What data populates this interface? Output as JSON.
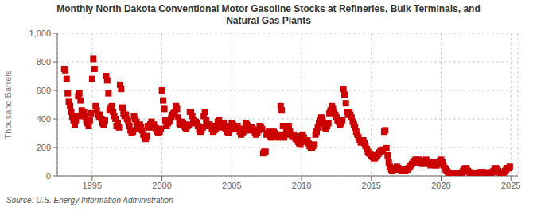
{
  "chart_data": {
    "type": "scatter",
    "title": "Monthly North Dakota Conventional Motor Gasoline Stocks at Refineries, Bulk Terminals, and\nNatural Gas Plants",
    "ylabel": "Thousand Barrels",
    "annotations": [
      "Source: U.S. Energy Information Administration"
    ],
    "color": "#CC0000",
    "marker": "square",
    "grid": true,
    "xlim": [
      1992.5,
      2025.5
    ],
    "xticks": [
      1995,
      2000,
      2005,
      2010,
      2015,
      2020,
      2025
    ],
    "ylim": [
      0,
      1000
    ],
    "yticks": [
      0,
      200,
      400,
      600,
      800,
      {
        "value": 1000,
        "label": "1,000"
      }
    ],
    "x": [
      1993.0,
      1993.08,
      1993.17,
      1993.25,
      1993.33,
      1993.42,
      1993.5,
      1993.58,
      1993.67,
      1993.75,
      1993.83,
      1993.92,
      1994.0,
      1994.08,
      1994.17,
      1994.25,
      1994.33,
      1994.42,
      1994.5,
      1994.58,
      1994.67,
      1994.75,
      1994.83,
      1994.92,
      1995.0,
      1995.08,
      1995.17,
      1995.25,
      1995.33,
      1995.42,
      1995.5,
      1995.58,
      1995.67,
      1995.75,
      1995.83,
      1995.92,
      1996.0,
      1996.08,
      1996.17,
      1996.25,
      1996.33,
      1996.42,
      1996.5,
      1996.58,
      1996.67,
      1996.75,
      1996.83,
      1996.92,
      1997.0,
      1997.08,
      1997.17,
      1997.25,
      1997.33,
      1997.42,
      1997.5,
      1997.58,
      1997.67,
      1997.75,
      1997.83,
      1997.92,
      1998.0,
      1998.08,
      1998.17,
      1998.25,
      1998.33,
      1998.42,
      1998.5,
      1998.58,
      1998.67,
      1998.75,
      1998.83,
      1998.92,
      1999.0,
      1999.08,
      1999.17,
      1999.25,
      1999.33,
      1999.42,
      1999.5,
      1999.58,
      1999.67,
      1999.75,
      1999.83,
      1999.92,
      2000.0,
      2000.08,
      2000.17,
      2000.25,
      2000.33,
      2000.42,
      2000.5,
      2000.58,
      2000.67,
      2000.75,
      2000.83,
      2000.92,
      2001.0,
      2001.08,
      2001.17,
      2001.25,
      2001.33,
      2001.42,
      2001.5,
      2001.58,
      2001.67,
      2001.75,
      2001.83,
      2001.92,
      2002.0,
      2002.08,
      2002.17,
      2002.25,
      2002.33,
      2002.42,
      2002.5,
      2002.58,
      2002.67,
      2002.75,
      2002.83,
      2002.92,
      2003.0,
      2003.08,
      2003.17,
      2003.25,
      2003.33,
      2003.42,
      2003.5,
      2003.58,
      2003.67,
      2003.75,
      2003.83,
      2003.92,
      2004.0,
      2004.08,
      2004.17,
      2004.25,
      2004.33,
      2004.42,
      2004.5,
      2004.58,
      2004.67,
      2004.75,
      2004.83,
      2004.92,
      2005.0,
      2005.08,
      2005.17,
      2005.25,
      2005.33,
      2005.42,
      2005.5,
      2005.58,
      2005.67,
      2005.75,
      2005.83,
      2005.92,
      2006.0,
      2006.08,
      2006.17,
      2006.25,
      2006.33,
      2006.42,
      2006.5,
      2006.58,
      2006.67,
      2006.75,
      2006.83,
      2006.92,
      2007.0,
      2007.08,
      2007.17,
      2007.25,
      2007.33,
      2007.42,
      2007.5,
      2007.58,
      2007.67,
      2007.75,
      2007.83,
      2007.92,
      2008.0,
      2008.08,
      2008.17,
      2008.25,
      2008.33,
      2008.42,
      2008.5,
      2008.58,
      2008.67,
      2008.75,
      2008.83,
      2008.92,
      2009.0,
      2009.08,
      2009.17,
      2009.25,
      2009.33,
      2009.42,
      2009.5,
      2009.58,
      2009.67,
      2009.75,
      2009.83,
      2009.92,
      2010.0,
      2010.08,
      2010.17,
      2010.25,
      2010.33,
      2010.42,
      2010.5,
      2010.58,
      2010.67,
      2010.75,
      2010.83,
      2010.92,
      2011.0,
      2011.08,
      2011.17,
      2011.25,
      2011.33,
      2011.42,
      2011.5,
      2011.58,
      2011.67,
      2011.75,
      2011.83,
      2011.92,
      2012.0,
      2012.08,
      2012.17,
      2012.25,
      2012.33,
      2012.42,
      2012.5,
      2012.58,
      2012.67,
      2012.75,
      2012.83,
      2012.92,
      2013.0,
      2013.08,
      2013.17,
      2013.25,
      2013.33,
      2013.42,
      2013.5,
      2013.58,
      2013.67,
      2013.75,
      2013.83,
      2013.92,
      2014.0,
      2014.08,
      2014.17,
      2014.25,
      2014.33,
      2014.42,
      2014.5,
      2014.58,
      2014.67,
      2014.75,
      2014.83,
      2014.92,
      2015.0,
      2015.08,
      2015.17,
      2015.25,
      2015.33,
      2015.42,
      2015.5,
      2015.58,
      2015.67,
      2015.75,
      2015.83,
      2015.92,
      2016.0,
      2016.08,
      2016.17,
      2016.25,
      2016.33,
      2016.42,
      2016.5,
      2016.58,
      2016.67,
      2016.75,
      2016.83,
      2016.92,
      2017.0,
      2017.08,
      2017.17,
      2017.25,
      2017.33,
      2017.42,
      2017.5,
      2017.58,
      2017.67,
      2017.75,
      2017.83,
      2017.92,
      2018.0,
      2018.08,
      2018.17,
      2018.25,
      2018.33,
      2018.42,
      2018.5,
      2018.58,
      2018.67,
      2018.75,
      2018.83,
      2018.92,
      2019.0,
      2019.08,
      2019.17,
      2019.25,
      2019.33,
      2019.42,
      2019.5,
      2019.58,
      2019.67,
      2019.75,
      2019.83,
      2019.92,
      2020.0,
      2020.08,
      2020.17,
      2020.25,
      2020.33,
      2020.42,
      2020.5,
      2020.58,
      2020.67,
      2020.75,
      2020.83,
      2020.92,
      2021.0,
      2021.08,
      2021.17,
      2021.25,
      2021.33,
      2021.42,
      2021.5,
      2021.58,
      2021.67,
      2021.75,
      2021.83,
      2021.92,
      2022.0,
      2022.08,
      2022.17,
      2022.25,
      2022.33,
      2022.42,
      2022.5,
      2022.58,
      2022.67,
      2022.75,
      2022.83,
      2022.92,
      2023.0,
      2023.08,
      2023.17,
      2023.25,
      2023.33,
      2023.42,
      2023.5,
      2023.58,
      2023.67,
      2023.75,
      2023.83,
      2023.92,
      2024.0,
      2024.08,
      2024.17,
      2024.25,
      2024.33,
      2024.42,
      2024.5,
      2024.58,
      2024.67,
      2024.75,
      2024.83,
      2024.92
    ],
    "values": [
      750,
      740,
      680,
      580,
      520,
      490,
      450,
      410,
      390,
      360,
      390,
      420,
      560,
      580,
      530,
      460,
      420,
      450,
      420,
      390,
      370,
      350,
      390,
      440,
      680,
      820,
      750,
      490,
      460,
      430,
      410,
      430,
      400,
      370,
      360,
      390,
      700,
      670,
      580,
      460,
      480,
      490,
      450,
      420,
      400,
      350,
      370,
      340,
      640,
      610,
      480,
      440,
      420,
      430,
      400,
      380,
      350,
      320,
      300,
      310,
      420,
      400,
      380,
      350,
      330,
      360,
      340,
      320,
      290,
      270,
      260,
      280,
      350,
      340,
      360,
      380,
      350,
      360,
      340,
      330,
      310,
      300,
      310,
      330,
      600,
      530,
      470,
      390,
      350,
      370,
      380,
      390,
      410,
      430,
      440,
      450,
      490,
      470,
      410,
      370,
      360,
      380,
      370,
      350,
      340,
      330,
      350,
      360,
      450,
      450,
      420,
      390,
      370,
      380,
      370,
      350,
      330,
      310,
      320,
      340,
      420,
      450,
      390,
      360,
      350,
      360,
      350,
      330,
      310,
      320,
      330,
      350,
      380,
      390,
      370,
      340,
      350,
      370,
      350,
      330,
      310,
      300,
      320,
      340,
      370,
      360,
      350,
      330,
      340,
      350,
      330,
      310,
      290,
      300,
      310,
      330,
      370,
      360,
      350,
      330,
      320,
      340,
      330,
      320,
      300,
      290,
      300,
      320,
      350,
      340,
      330,
      160,
      170,
      170,
      290,
      300,
      310,
      280,
      270,
      290,
      310,
      300,
      290,
      280,
      270,
      290,
      490,
      460,
      350,
      270,
      290,
      310,
      330,
      350,
      310,
      290,
      280,
      290,
      280,
      260,
      250,
      240,
      230,
      220,
      280,
      290,
      270,
      250,
      240,
      250,
      230,
      210,
      195,
      200,
      210,
      220,
      290,
      310,
      340,
      370,
      390,
      410,
      390,
      370,
      340,
      330,
      350,
      370,
      440,
      460,
      490,
      470,
      450,
      430,
      410,
      390,
      380,
      360,
      370,
      390,
      610,
      570,
      510,
      450,
      430,
      450,
      430,
      410,
      380,
      360,
      340,
      310,
      290,
      270,
      250,
      235,
      240,
      250,
      230,
      210,
      190,
      170,
      160,
      155,
      145,
      135,
      125,
      125,
      135,
      145,
      155,
      165,
      175,
      175,
      185,
      310,
      320,
      195,
      145,
      95,
      65,
      45,
      35,
      45,
      55,
      55,
      65,
      55,
      45,
      45,
      35,
      35,
      35,
      35,
      45,
      45,
      55,
      65,
      75,
      85,
      95,
      105,
      115,
      95,
      105,
      115,
      105,
      95,
      85,
      95,
      105,
      115,
      105,
      95,
      85,
      75,
      85,
      95,
      85,
      75,
      75,
      85,
      95,
      105,
      115,
      95,
      75,
      55,
      45,
      35,
      25,
      15,
      15,
      15,
      15,
      15,
      15,
      15,
      15,
      15,
      15,
      15,
      25,
      35,
      45,
      55,
      45,
      35,
      25,
      25,
      15,
      15,
      15,
      15,
      15,
      15,
      15,
      25,
      25,
      25,
      25,
      25,
      15,
      15,
      15,
      15,
      15,
      25,
      25,
      35,
      45,
      55,
      45,
      35,
      25,
      15,
      15,
      15,
      25,
      35,
      45,
      55,
      55,
      65
    ]
  }
}
